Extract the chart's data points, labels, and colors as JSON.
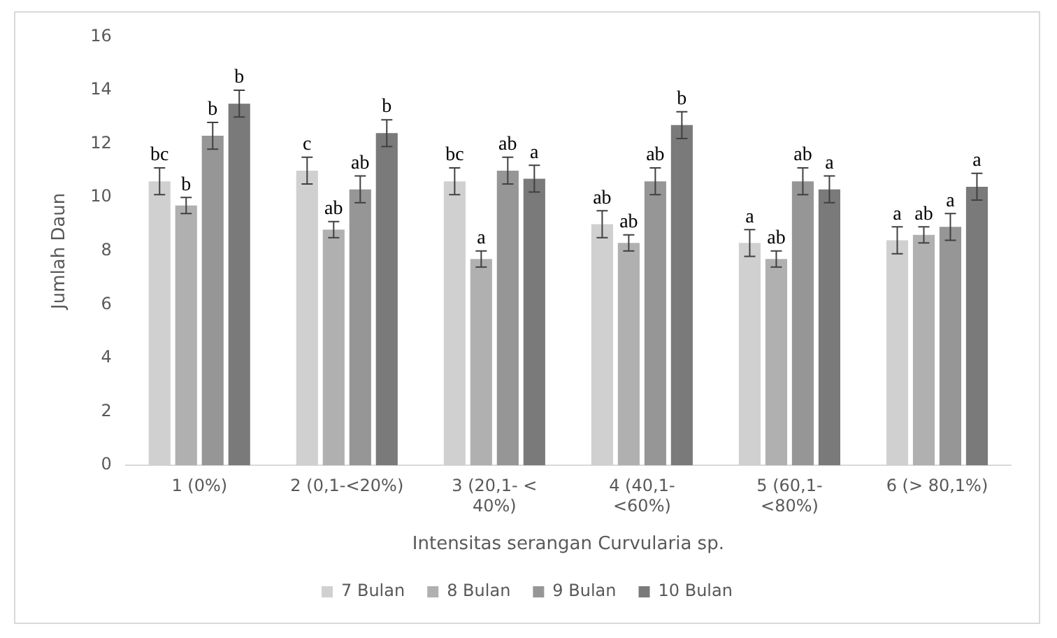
{
  "chart_data": {
    "type": "bar",
    "xlabel": "Intensitas serangan Curvularia sp.",
    "ylabel": "Jumlah Daun",
    "categories": [
      "1 (0%)",
      "2 (0,1-<20%)",
      "3 (20,1- < 40%)",
      "4 (40,1- <60%)",
      "5 (60,1- <80%)",
      "6 (> 80,1%)"
    ],
    "series": [
      {
        "name": "7 Bulan",
        "color": "#d0d0d0",
        "values": [
          10.6,
          11.0,
          10.6,
          9.0,
          8.3,
          8.4
        ],
        "errors": [
          0.5,
          0.5,
          0.5,
          0.5,
          0.5,
          0.5
        ],
        "value_labels": [
          "bc",
          "c",
          "bc",
          "ab",
          "a",
          "a"
        ]
      },
      {
        "name": "8 Bulan",
        "color": "#b0b0b0",
        "values": [
          9.7,
          8.8,
          7.7,
          8.3,
          7.7,
          8.6
        ],
        "errors": [
          0.3,
          0.3,
          0.3,
          0.3,
          0.3,
          0.3
        ],
        "value_labels": [
          "b",
          "ab",
          "a",
          "ab",
          "ab",
          "ab"
        ]
      },
      {
        "name": "9 Bulan",
        "color": "#969696",
        "values": [
          12.3,
          10.3,
          11.0,
          10.6,
          10.6,
          8.9
        ],
        "errors": [
          0.5,
          0.5,
          0.5,
          0.5,
          0.5,
          0.5
        ],
        "value_labels": [
          "b",
          "ab",
          "ab",
          "ab",
          "ab",
          "a"
        ]
      },
      {
        "name": "10 Bulan",
        "color": "#7a7a7a",
        "values": [
          13.5,
          12.4,
          10.7,
          12.7,
          10.3,
          10.4
        ],
        "errors": [
          0.5,
          0.5,
          0.5,
          0.5,
          0.5,
          0.5
        ],
        "value_labels": [
          "b",
          "b",
          "a",
          "b",
          "a",
          "a"
        ]
      }
    ],
    "ylim": [
      0,
      16
    ],
    "yticks": [
      0,
      2,
      4,
      6,
      8,
      10,
      12,
      14,
      16
    ],
    "grid": false,
    "legend": "bottom"
  }
}
